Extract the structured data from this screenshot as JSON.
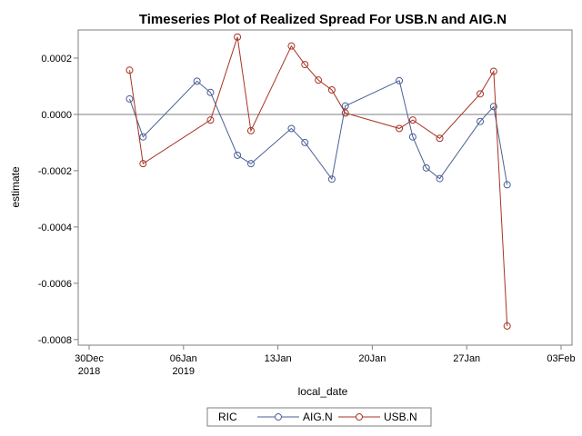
{
  "chart_data": {
    "type": "line",
    "title": "Timeseries Plot of Realized Spread For USB.N and AIG.N",
    "xlabel": "local_date",
    "ylabel": "estimate",
    "xlim": [
      "2018-12-30",
      "2019-02-03"
    ],
    "ylim": [
      -0.00082,
      0.0003
    ],
    "x_ticks": [
      {
        "date": "2018-12-30",
        "line1": "30Dec",
        "line2": "2018"
      },
      {
        "date": "2019-01-06",
        "line1": "06Jan",
        "line2": "2019"
      },
      {
        "date": "2019-01-13",
        "line1": "13Jan",
        "line2": ""
      },
      {
        "date": "2019-01-20",
        "line1": "20Jan",
        "line2": ""
      },
      {
        "date": "2019-01-27",
        "line1": "27Jan",
        "line2": ""
      },
      {
        "date": "2019-02-03",
        "line1": "03Feb",
        "line2": ""
      }
    ],
    "y_ticks": [
      {
        "value": 0.0002,
        "label": "0.0002"
      },
      {
        "value": 0.0,
        "label": "0.0000"
      },
      {
        "value": -0.0002,
        "label": "-0.0002"
      },
      {
        "value": -0.0004,
        "label": "-0.0004"
      },
      {
        "value": -0.0006,
        "label": "-0.0006"
      },
      {
        "value": -0.0008,
        "label": "-0.0008"
      }
    ],
    "reference_line_y": 0.0,
    "grid": false,
    "legend": {
      "title": "RIC",
      "placement": "bottom"
    },
    "series": [
      {
        "name": "AIG.N",
        "color": "#4a5f96",
        "x": [
          "2019-01-02",
          "2019-01-03",
          "2019-01-07",
          "2019-01-08",
          "2019-01-10",
          "2019-01-11",
          "2019-01-14",
          "2019-01-15",
          "2019-01-17",
          "2019-01-18",
          "2019-01-22",
          "2019-01-23",
          "2019-01-24",
          "2019-01-25",
          "2019-01-28",
          "2019-01-29",
          "2019-01-30"
        ],
        "values": [
          5.5e-05,
          -8e-05,
          0.000118,
          7.8e-05,
          -0.000145,
          -0.000175,
          -5e-05,
          -0.0001,
          -0.00023,
          3e-05,
          0.00012,
          -8e-05,
          -0.00019,
          -0.000228,
          -2.5e-05,
          2.8e-05,
          -0.00025
        ]
      },
      {
        "name": "USB.N",
        "color": "#a83224",
        "x": [
          "2019-01-02",
          "2019-01-03",
          "2019-01-08",
          "2019-01-10",
          "2019-01-11",
          "2019-01-14",
          "2019-01-15",
          "2019-01-16",
          "2019-01-17",
          "2019-01-18",
          "2019-01-22",
          "2019-01-23",
          "2019-01-25",
          "2019-01-28",
          "2019-01-29",
          "2019-01-30"
        ],
        "values": [
          0.000157,
          -0.000175,
          -2e-05,
          0.000275,
          -5.8e-05,
          0.000243,
          0.000177,
          0.000122,
          8.7e-05,
          5e-06,
          -5e-05,
          -2e-05,
          -8.5e-05,
          7.3e-05,
          0.000153,
          -0.000752
        ]
      }
    ]
  }
}
